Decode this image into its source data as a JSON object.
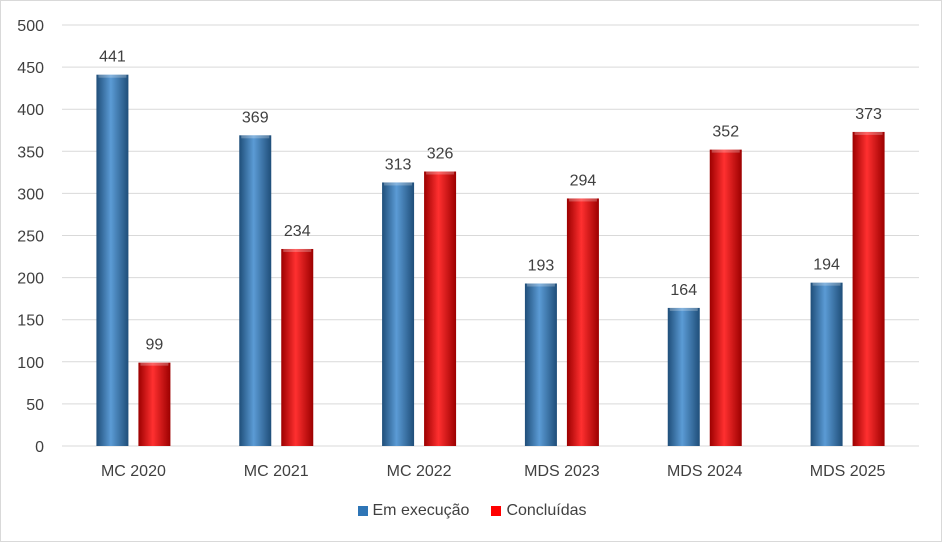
{
  "chart_data": {
    "type": "bar",
    "categories": [
      "MC 2020",
      "MC 2021",
      "MC 2022",
      "MDS 2023",
      "MDS 2024",
      "MDS 2025"
    ],
    "series": [
      {
        "name": "Em execução",
        "values": [
          441,
          369,
          313,
          193,
          164,
          194
        ],
        "color": "#2e75b6"
      },
      {
        "name": "Concluídas",
        "values": [
          99,
          234,
          326,
          294,
          352,
          373
        ],
        "color": "#ff0000"
      }
    ],
    "ylim": [
      0,
      500
    ],
    "yticks": [
      0,
      50,
      100,
      150,
      200,
      250,
      300,
      350,
      400,
      450,
      500
    ],
    "grid": true,
    "legend_position": "bottom"
  }
}
